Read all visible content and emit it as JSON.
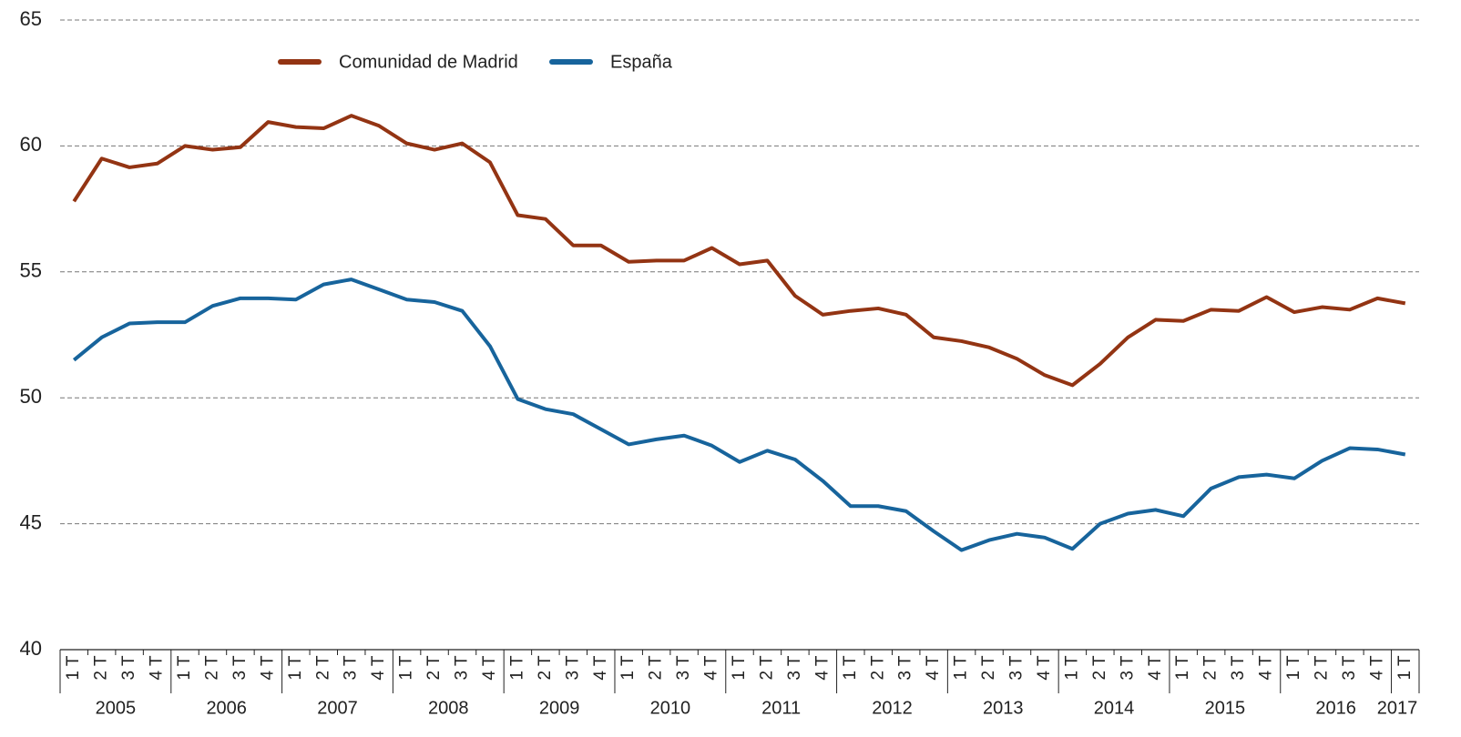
{
  "chart_data": {
    "type": "line",
    "categories": [
      "1 T",
      "2 T",
      "3 T",
      "4 T",
      "1 T",
      "2 T",
      "3 T",
      "4 T",
      "1 T",
      "2 T",
      "3 T",
      "4 T",
      "1 T",
      "2 T",
      "3 T",
      "4 T",
      "1 T",
      "2 T",
      "3 T",
      "4 T",
      "1 T",
      "2 T",
      "3 T",
      "4 T",
      "1 T",
      "2 T",
      "3 T",
      "4 T",
      "1 T",
      "2 T",
      "3 T",
      "4 T",
      "1 T",
      "2 T",
      "3 T",
      "4 T",
      "1 T",
      "2 T",
      "3 T",
      "4 T",
      "1 T",
      "2 T",
      "3 T",
      "4 T",
      "1 T",
      "2 T",
      "3 T",
      "4 T",
      "1 T"
    ],
    "years": [
      "2005",
      "2006",
      "2007",
      "2008",
      "2009",
      "2010",
      "2011",
      "2012",
      "2013",
      "2014",
      "2015",
      "2016",
      "2017"
    ],
    "series": [
      {
        "name": "Comunidad de Madrid",
        "color": "#933413",
        "values": [
          57.8,
          59.5,
          59.15,
          59.3,
          60.0,
          59.85,
          59.95,
          60.95,
          60.75,
          60.7,
          61.2,
          60.8,
          60.1,
          59.85,
          60.1,
          59.35,
          57.25,
          57.1,
          56.05,
          56.05,
          55.4,
          55.45,
          55.45,
          55.95,
          55.3,
          55.45,
          54.05,
          53.3,
          53.45,
          53.55,
          53.3,
          52.4,
          52.25,
          52.0,
          51.55,
          50.9,
          50.5,
          51.35,
          52.4,
          53.1,
          53.05,
          53.5,
          53.45,
          54.0,
          53.4,
          53.6,
          53.5,
          53.95,
          53.75
        ]
      },
      {
        "name": "España",
        "color": "#17649c",
        "values": [
          51.5,
          52.4,
          52.95,
          53.0,
          53.0,
          53.65,
          53.95,
          53.95,
          53.9,
          54.5,
          54.7,
          54.3,
          53.9,
          53.8,
          53.45,
          52.05,
          49.95,
          49.55,
          49.35,
          48.75,
          48.15,
          48.35,
          48.5,
          48.1,
          47.45,
          47.9,
          47.55,
          46.7,
          45.7,
          45.7,
          45.5,
          44.7,
          43.95,
          44.35,
          44.6,
          44.45,
          44.0,
          45.0,
          45.4,
          45.55,
          45.3,
          46.4,
          46.85,
          46.95,
          46.8,
          47.5,
          48.0,
          47.95,
          47.75
        ]
      }
    ],
    "ylim": [
      40,
      65
    ],
    "yticks": [
      40,
      45,
      50,
      55,
      60,
      65
    ],
    "grid": true,
    "legend": "top"
  }
}
